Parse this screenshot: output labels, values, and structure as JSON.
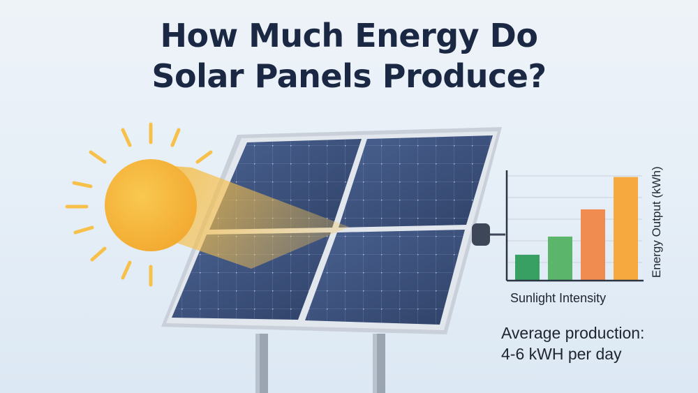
{
  "title": {
    "line1": "How Much Energy Do",
    "line2": "Solar Panels Produce?"
  },
  "colors": {
    "background": "#e9f1f8",
    "title": "#1b2844",
    "sun": "#f6b93b",
    "panel_cell": "#3a4f78",
    "panel_frame": "#cfd5dd"
  },
  "chart_data": {
    "type": "bar",
    "xlabel": "Sunlight Intensity",
    "ylabel": "Energy Output (kWh)",
    "values": [
      2,
      3.4,
      5.5,
      8
    ],
    "colors": [
      "#37a062",
      "#5bb56b",
      "#f08c50",
      "#f6a93e"
    ],
    "ylim": [
      0,
      9
    ],
    "grid": true
  },
  "caption": {
    "line1": "Average production:",
    "line2": "4-6 kWH per day"
  }
}
